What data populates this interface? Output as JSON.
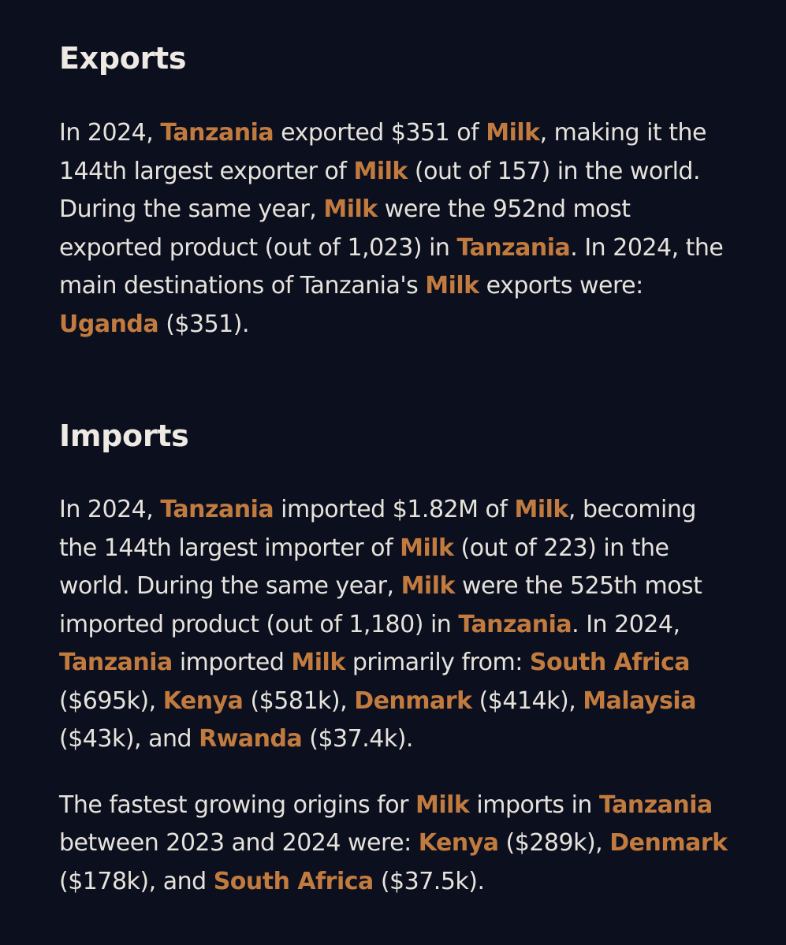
{
  "exports": {
    "title": "Exports",
    "p1": {
      "t1": "In 2024, ",
      "country": "Tanzania",
      "t2": " exported $351 of ",
      "product": "Milk",
      "t3": ", making it the 144th largest exporter of ",
      "t4": " (out of 157) in the world. During the same year, ",
      "t5": " were the 952nd most exported product (out of 1,023) in ",
      "t6": ". In 2024, the main destinations of Tanzania's ",
      "t7": " exports were: ",
      "dest1": "Uganda",
      "t8": " ($351)."
    }
  },
  "imports": {
    "title": "Imports",
    "p1": {
      "t1": "In 2024, ",
      "country": "Tanzania",
      "t2": " imported $1.82M of ",
      "product": "Milk",
      "t3": ", becoming the 144th largest importer of ",
      "t4": " (out of 223) in the world. During the same year, ",
      "t5": " were the 525th most imported product (out of 1,180) in ",
      "t6": ". In 2024, ",
      "t7": " imported ",
      "t8": " primarily from: ",
      "o1": "South Africa",
      "t9": " ($695k), ",
      "o2": "Kenya",
      "t10": " ($581k), ",
      "o3": "Denmark",
      "t11": " ($414k), ",
      "o4": "Malaysia",
      "t12": " ($43k), and ",
      "o5": "Rwanda",
      "t13": " ($37.4k)."
    },
    "p2": {
      "t1": "The fastest growing origins for ",
      "product": "Milk",
      "t2": " imports in ",
      "country": "Tanzania",
      "t3": " between 2023 and 2024 were: ",
      "g1": "Kenya",
      "t4": " ($289k), ",
      "g2": "Denmark",
      "t5": " ($178k), and ",
      "g3": "South Africa",
      "t6": " ($37.5k)."
    }
  },
  "colors": {
    "background": "#0c0f1e",
    "text": "#e6e3dc",
    "highlight": "#c27b3f"
  }
}
